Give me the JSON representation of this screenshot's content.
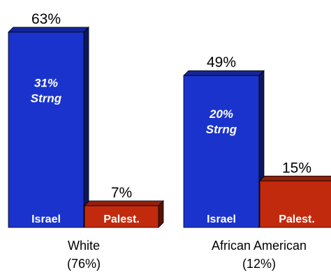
{
  "chart_data": {
    "type": "bar",
    "title": "",
    "xlabel": "",
    "ylabel": "",
    "ylim": [
      0,
      63
    ],
    "grid": false,
    "legend": "none",
    "groups": [
      {
        "label_line1": "White",
        "label_line2": "(76%)",
        "bars": [
          {
            "name": "Israel",
            "value": 63,
            "value_label": "63%",
            "inner_label_line1": "31%",
            "inner_label_line2": "Strng",
            "color": "#1a33cc"
          },
          {
            "name": "Palest.",
            "value": 7,
            "value_label": "7%",
            "color": "#c22a0e"
          }
        ]
      },
      {
        "label_line1": "African American",
        "label_line2": "(12%)",
        "bars": [
          {
            "name": "Israel",
            "value": 49,
            "value_label": "49%",
            "inner_label_line1": "20%",
            "inner_label_line2": "Strng",
            "color": "#1a33cc"
          },
          {
            "name": "Palest.",
            "value": 15,
            "value_label": "15%",
            "color": "#c22a0e"
          }
        ]
      }
    ]
  }
}
